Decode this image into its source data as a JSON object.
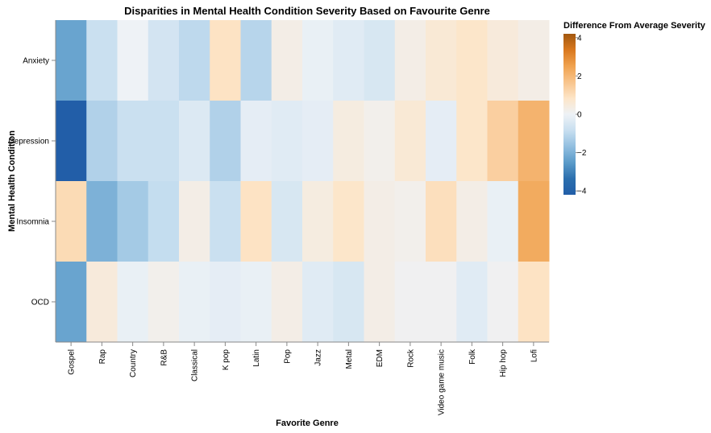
{
  "chart_data": {
    "type": "heatmap",
    "title": "Disparities in Mental Health Condition Severity Based on Favourite Genre",
    "xlabel": "Favorite Genre",
    "ylabel": "Mental Health Condition",
    "x": [
      "Gospel",
      "Rap",
      "Country",
      "R&B",
      "Classical",
      "K pop",
      "Latin",
      "Pop",
      "Jazz",
      "Metal",
      "EDM",
      "Rock",
      "Video game music",
      "Folk",
      "Hip hop",
      "Lofi"
    ],
    "y": [
      "Anxiety",
      "Depression",
      "Insomnia",
      "OCD"
    ],
    "values": [
      [
        -2.3,
        -0.8,
        0.0,
        -0.6,
        -1.0,
        0.9,
        -1.1,
        0.3,
        -0.1,
        -0.3,
        -0.5,
        0.3,
        0.6,
        0.8,
        0.5,
        0.3
      ],
      [
        -4.2,
        -1.2,
        -0.8,
        -0.8,
        -0.4,
        -1.2,
        -0.2,
        -0.3,
        -0.2,
        0.4,
        0.2,
        0.6,
        -0.2,
        0.8,
        1.4,
        2.1
      ],
      [
        1.1,
        -2.0,
        -1.4,
        -0.9,
        0.3,
        -0.8,
        0.9,
        -0.5,
        0.4,
        0.8,
        0.3,
        0.2,
        1.0,
        0.3,
        -0.1,
        2.3
      ],
      [
        -2.3,
        0.5,
        -0.1,
        0.2,
        -0.1,
        -0.2,
        -0.1,
        0.3,
        -0.3,
        -0.5,
        0.3,
        0.1,
        0.1,
        -0.3,
        0.1,
        0.9
      ]
    ],
    "color_scale": {
      "title": "Difference From Average Severity",
      "domain": [
        -4.2,
        4.2
      ],
      "ticks": [
        4,
        2,
        0,
        -2,
        -4
      ],
      "scheme": "blueorange",
      "stops": [
        "#225ea8",
        "#2b6fae",
        "#5b9bc9",
        "#92bfe0",
        "#c8dff0",
        "#eef2f6",
        "#fde5c8",
        "#f8c48c",
        "#f0a24f",
        "#d9781e",
        "#a2570f"
      ]
    }
  }
}
